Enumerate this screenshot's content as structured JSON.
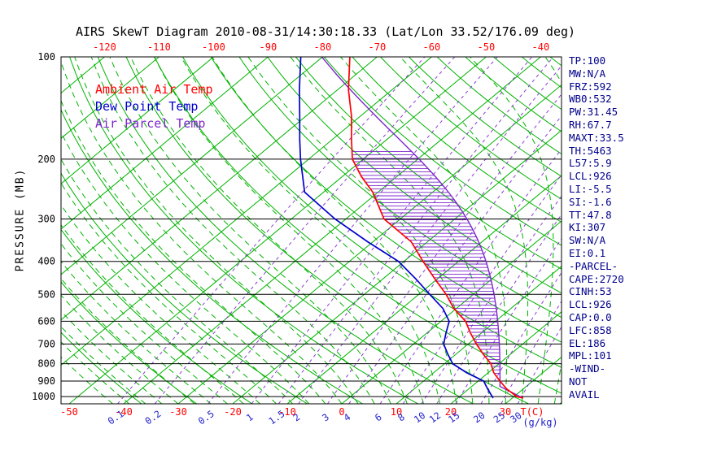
{
  "title": "AIRS SkewT Diagram 2010-08-31/14:30:18.33 (Lat/Lon 33.52/176.09 deg)",
  "legend": {
    "ambient_label": "Ambient Air Temp",
    "dew_label": "Dew Point Temp",
    "parcel_label": "Air Parcel Temp"
  },
  "left_axis": {
    "label": "PRESSURE (MB)"
  },
  "axes": {
    "pressure_ticks": [
      100,
      200,
      300,
      400,
      500,
      600,
      700,
      800,
      900,
      1000
    ],
    "top_temp_ticks": [
      -120,
      -110,
      -100,
      -90,
      -80,
      -70,
      -60,
      -50,
      -40
    ],
    "bottom_temp_ticks": [
      -50,
      -40,
      -30,
      -20,
      -10,
      0,
      10,
      20,
      30
    ],
    "temp_unit": "T(C)",
    "mixing_ratio_ticks": [
      0.1,
      0.2,
      0.5,
      1,
      1.5,
      2,
      3,
      4,
      6,
      8,
      10,
      12,
      15,
      20,
      25,
      30
    ],
    "mixing_ratio_unit": "(g/kg)"
  },
  "stats_lines": [
    "TP:100",
    "MW:N/A",
    "FRZ:592",
    "WB0:532",
    "PW:31.45",
    "RH:67.7",
    "MAXT:33.5",
    "TH:5463",
    "L57:5.9",
    "LCL:926",
    "LI:-5.5",
    "SI:-1.6",
    "TT:47.8",
    "KI:307",
    "SW:N/A",
    "EI:0.1",
    "-PARCEL-",
    "CAPE:2720",
    "CINH:53",
    "LCL:926",
    "CAP:0.0",
    "LFC:858",
    "EL:186",
    "MPL:101",
    "-WIND-",
    "NOT",
    "AVAIL"
  ],
  "colors": {
    "background": "#ffffff",
    "title_text": "#000000",
    "ambient": "#ff0000",
    "dew_point": "#0000cc",
    "parcel": "#7d26cd",
    "isoline_green": "#00b300",
    "mixing_ratio_line": "#8a3fd1",
    "pressure_grid": "#000000",
    "border": "#000000",
    "pressure_label_text": "#000000",
    "temp_tick_text": "#ff0000",
    "mixing_tick_text": "#2222cc",
    "stats_text": "#00008b"
  },
  "chart_data": {
    "type": "line",
    "title": "AIRS SkewT Diagram",
    "datetime": "2010-08-31/14:30:18.33",
    "lat_lon_deg": "33.52/176.09",
    "xlabel": "Temperature (C)",
    "ylabel": "Pressure (MB)",
    "pressure_range_mb": [
      1050,
      100
    ],
    "temp_axis_range_c": [
      -50,
      40
    ],
    "isotherms_c": {
      "min": -160,
      "max": 40,
      "step": 10
    },
    "dry_adiabats_theta_c": {
      "min": -40,
      "max": 220,
      "step": 10
    },
    "moist_adiabats_start_c": {
      "min": -42,
      "max": 42,
      "step": 3
    },
    "mixing_ratio_lines_gkg": [
      0.1,
      0.2,
      0.5,
      1,
      1.5,
      2,
      3,
      4,
      6,
      8,
      10,
      12,
      15,
      20,
      25,
      30
    ],
    "cape_region": {
      "lfc_mb": 858,
      "el_mb": 186
    },
    "series": [
      {
        "name": "Ambient Air Temp",
        "color_key": "ambient",
        "points_p_t": [
          [
            1010,
            32
          ],
          [
            1000,
            30.5
          ],
          [
            950,
            27
          ],
          [
            900,
            24
          ],
          [
            850,
            21
          ],
          [
            800,
            18.5
          ],
          [
            750,
            15
          ],
          [
            700,
            11.5
          ],
          [
            650,
            8
          ],
          [
            600,
            4.5
          ],
          [
            550,
            -0.5
          ],
          [
            500,
            -5
          ],
          [
            450,
            -10.5
          ],
          [
            400,
            -16.5
          ],
          [
            350,
            -23
          ],
          [
            300,
            -33
          ],
          [
            250,
            -41
          ],
          [
            225,
            -46.5
          ],
          [
            200,
            -52
          ],
          [
            175,
            -56.5
          ],
          [
            150,
            -61.5
          ],
          [
            125,
            -68
          ],
          [
            100,
            -75
          ]
        ]
      },
      {
        "name": "Dew Point Temp",
        "color_key": "dew_point",
        "points_p_t": [
          [
            1010,
            26.5
          ],
          [
            1000,
            26
          ],
          [
            950,
            23.5
          ],
          [
            900,
            21
          ],
          [
            850,
            16
          ],
          [
            800,
            11.5
          ],
          [
            750,
            8.5
          ],
          [
            700,
            5.5
          ],
          [
            650,
            3.5
          ],
          [
            600,
            1.5
          ],
          [
            550,
            -2.5
          ],
          [
            500,
            -8
          ],
          [
            450,
            -14
          ],
          [
            400,
            -21
          ],
          [
            350,
            -31
          ],
          [
            300,
            -42
          ],
          [
            250,
            -53.5
          ],
          [
            200,
            -61.5
          ],
          [
            175,
            -66
          ],
          [
            150,
            -71
          ],
          [
            125,
            -77
          ],
          [
            100,
            -84
          ]
        ]
      },
      {
        "name": "Air Parcel Temp",
        "color_key": "parcel",
        "parcel_start": {
          "p_mb": 1010,
          "t_c": 32,
          "td_c": 26.5
        }
      }
    ]
  }
}
